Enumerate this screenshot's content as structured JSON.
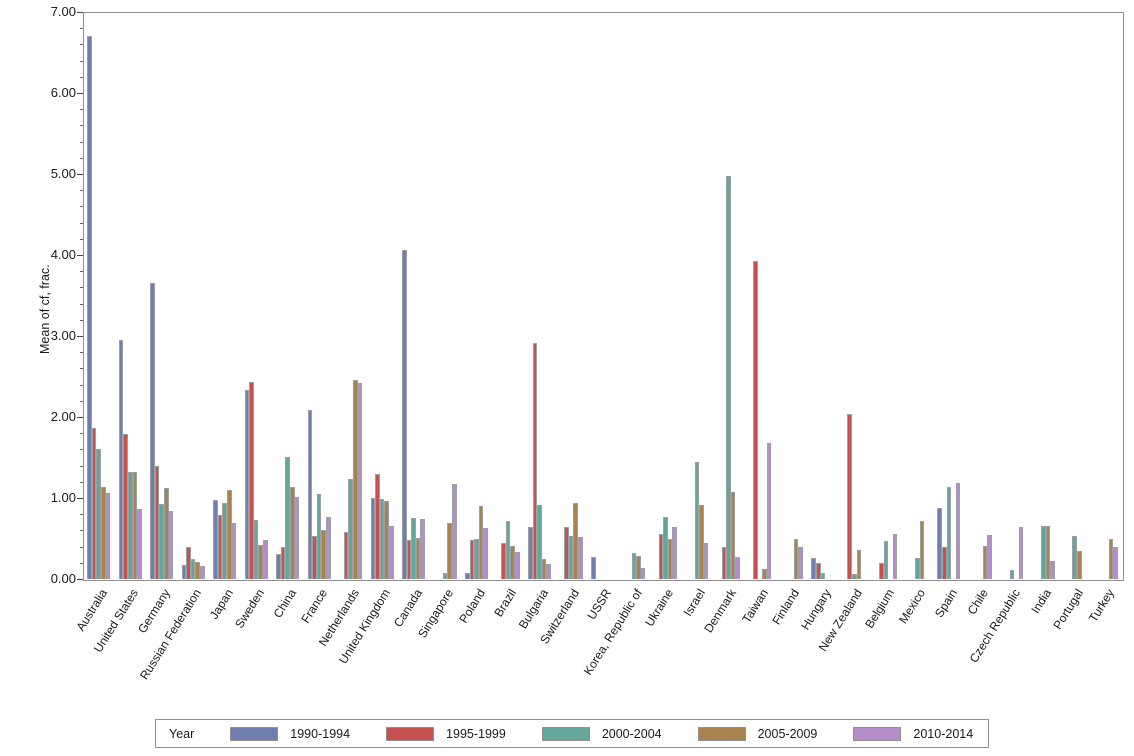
{
  "chart_data": {
    "type": "bar",
    "title": "",
    "xlabel": "",
    "ylabel": "Mean of cf, frac.",
    "ylim": [
      0,
      7
    ],
    "ytick_labels": [
      "0.00",
      "1.00",
      "2.00",
      "3.00",
      "4.00",
      "5.00",
      "6.00",
      "7.00"
    ],
    "minor_tick_step": 0.2,
    "grid": false,
    "legend": {
      "title": "Year",
      "position": "bottom"
    },
    "categories": [
      "Australia",
      "United States",
      "Germany",
      "Russian Federation",
      "Japan",
      "Sweden",
      "China",
      "France",
      "Netherlands",
      "United Kingdom",
      "Canada",
      "Singapore",
      "Poland",
      "Brazil",
      "Bulgaria",
      "Switzerland",
      "USSR",
      "Korea, Republic of",
      "Ukraine",
      "Israel",
      "Denmark",
      "Taiwan",
      "Finland",
      "Hungary",
      "New Zealand",
      "Belgium",
      "Mexico",
      "Spain",
      "Chile",
      "Czech Republic",
      "India",
      "Portugal",
      "Turkey"
    ],
    "series": [
      {
        "name": "1990-1994",
        "color": "#6f7eb1",
        "values": [
          6.7,
          2.95,
          3.66,
          0.17,
          0.97,
          2.33,
          0.31,
          2.09,
          null,
          1.0,
          4.06,
          null,
          0.07,
          null,
          0.64,
          null,
          0.27,
          null,
          null,
          null,
          null,
          null,
          null,
          0.26,
          null,
          null,
          null,
          0.88,
          null,
          null,
          null,
          null,
          null
        ]
      },
      {
        "name": "1995-1999",
        "color": "#c65151",
        "values": [
          1.87,
          1.79,
          1.39,
          0.39,
          0.79,
          2.43,
          0.4,
          0.53,
          0.58,
          1.3,
          0.48,
          null,
          0.48,
          0.45,
          2.91,
          0.64,
          null,
          null,
          0.55,
          null,
          0.39,
          3.92,
          null,
          0.2,
          2.04,
          0.2,
          null,
          0.4,
          null,
          null,
          null,
          null,
          null
        ]
      },
      {
        "name": "2000-2004",
        "color": "#63a79b",
        "values": [
          1.6,
          1.32,
          0.93,
          0.25,
          0.94,
          0.73,
          1.51,
          1.05,
          1.24,
          0.99,
          0.75,
          0.07,
          0.49,
          0.71,
          0.91,
          0.53,
          null,
          0.32,
          0.77,
          1.44,
          4.98,
          null,
          null,
          0.07,
          0.06,
          0.47,
          0.26,
          1.13,
          null,
          0.11,
          0.65,
          0.53,
          null
        ]
      },
      {
        "name": "2005-2009",
        "color": "#a9824e",
        "values": [
          1.13,
          1.32,
          1.12,
          0.21,
          1.1,
          0.42,
          1.13,
          0.61,
          2.46,
          0.96,
          0.51,
          0.69,
          0.9,
          0.41,
          0.25,
          0.94,
          null,
          0.29,
          0.5,
          0.91,
          1.07,
          0.12,
          0.49,
          null,
          0.36,
          null,
          0.71,
          null,
          0.41,
          null,
          0.66,
          0.35,
          0.5
        ]
      },
      {
        "name": "2010-2014",
        "color": "#b78ccb",
        "values": [
          1.06,
          0.86,
          0.84,
          0.16,
          0.69,
          0.48,
          1.01,
          0.77,
          2.42,
          0.66,
          0.74,
          1.17,
          0.63,
          0.33,
          0.19,
          0.52,
          null,
          0.13,
          0.64,
          0.45,
          0.27,
          1.68,
          0.39,
          null,
          null,
          0.56,
          null,
          1.19,
          0.54,
          0.64,
          0.22,
          null,
          0.4
        ]
      }
    ]
  }
}
